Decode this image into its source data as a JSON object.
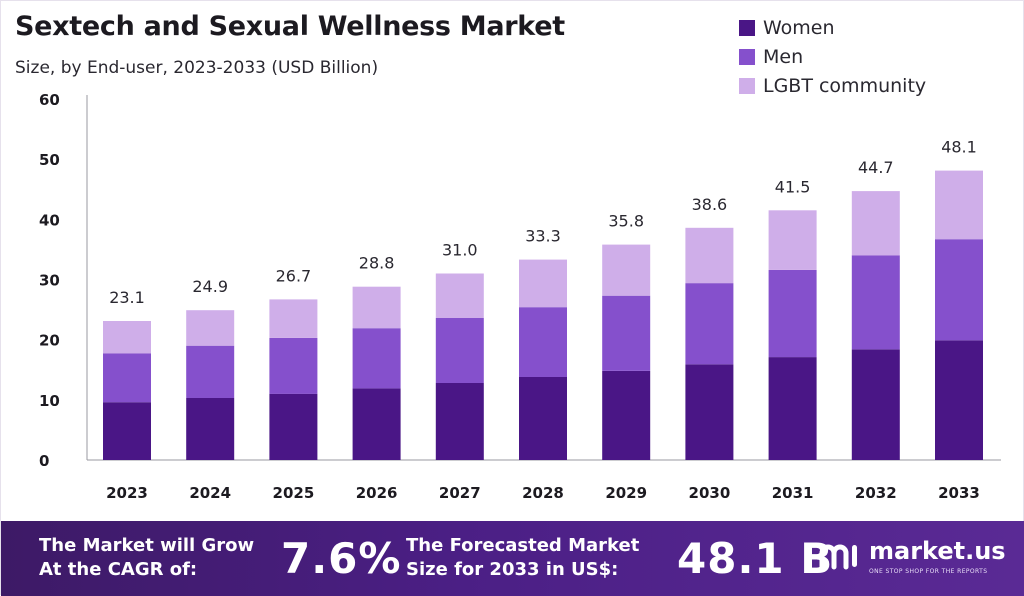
{
  "chart_data": {
    "type": "bar",
    "stacked": true,
    "title": "Sextech and Sexual Wellness Market",
    "subtitle": "Size, by End-user, 2023-2033 (USD Billion)",
    "xlabel": "",
    "ylabel": "",
    "ylim": [
      0,
      60
    ],
    "yticks": [
      0,
      10,
      20,
      30,
      40,
      50,
      60
    ],
    "grid": false,
    "legend_position": "top-right",
    "categories": [
      "2023",
      "2024",
      "2025",
      "2026",
      "2027",
      "2028",
      "2029",
      "2030",
      "2031",
      "2032",
      "2033"
    ],
    "series": [
      {
        "name": "Women",
        "color": "#4a1686",
        "values": [
          9.6,
          10.3,
          11.0,
          11.9,
          12.8,
          13.8,
          14.8,
          15.9,
          17.1,
          18.4,
          19.9
        ]
      },
      {
        "name": "Men",
        "color": "#8550cc",
        "values": [
          8.1,
          8.7,
          9.3,
          10.0,
          10.8,
          11.6,
          12.5,
          13.5,
          14.5,
          15.6,
          16.8
        ]
      },
      {
        "name": "LGBT community",
        "color": "#cfaee9",
        "values": [
          5.4,
          5.9,
          6.4,
          6.9,
          7.4,
          7.9,
          8.5,
          9.2,
          9.9,
          10.7,
          11.4
        ]
      }
    ],
    "totals": [
      "23.1",
      "24.9",
      "26.7",
      "28.8",
      "31.0",
      "33.3",
      "35.8",
      "38.6",
      "41.5",
      "44.7",
      "48.1"
    ]
  },
  "footer": {
    "cagr_label_line1": "The Market will Grow",
    "cagr_label_line2": "At the CAGR of:",
    "cagr_value": "7.6%",
    "forecast_label_line1": "The Forecasted Market",
    "forecast_label_line2": "Size for 2033 in US$:",
    "forecast_value": "48.1 B"
  },
  "logo": {
    "name": "market.us",
    "tagline": "ONE STOP SHOP FOR THE REPORTS"
  }
}
